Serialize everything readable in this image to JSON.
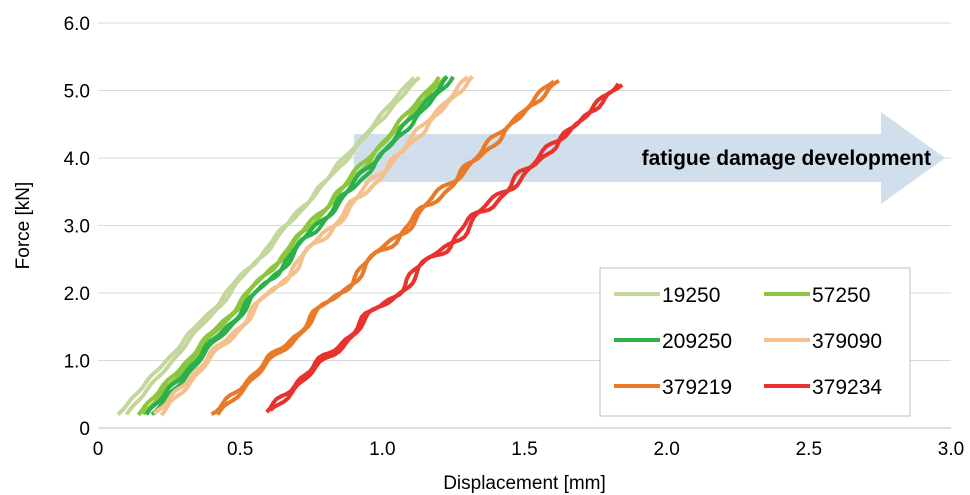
{
  "chart_data": {
    "type": "line",
    "xlabel": "Displacement [mm]",
    "ylabel": "Force [kN]",
    "xlim": [
      0,
      3.0
    ],
    "ylim": [
      0,
      6.0
    ],
    "xticks": [
      "0",
      "0.5",
      "1.0",
      "1.5",
      "2.0",
      "2.5",
      "3.0"
    ],
    "yticks": [
      "0",
      "1.0",
      "2.0",
      "3.0",
      "4.0",
      "5.0",
      "6.0"
    ],
    "grid": "horizontal",
    "legend_position": "bottom-right",
    "annotation": {
      "text": "fatigue damage development",
      "arrow_from_x": 0.9,
      "arrow_to_x": 3.0,
      "y_center": 4.0,
      "color": "#c9d8e8"
    },
    "series": [
      {
        "name": "19250",
        "color": "#c3d69b",
        "loading": [
          [
            0.07,
            0.2
          ],
          [
            1.13,
            5.2
          ]
        ],
        "unloading": [
          [
            0.1,
            0.2
          ],
          [
            1.11,
            5.2
          ]
        ]
      },
      {
        "name": "57250",
        "color": "#8cc63f",
        "loading": [
          [
            0.14,
            0.2
          ],
          [
            1.22,
            5.2
          ]
        ],
        "unloading": [
          [
            0.16,
            0.2
          ],
          [
            1.2,
            5.2
          ]
        ]
      },
      {
        "name": "209250",
        "color": "#2db04b",
        "loading": [
          [
            0.17,
            0.2
          ],
          [
            1.25,
            5.2
          ]
        ],
        "unloading": [
          [
            0.19,
            0.2
          ],
          [
            1.23,
            5.2
          ]
        ]
      },
      {
        "name": "379090",
        "color": "#f4c08e",
        "loading": [
          [
            0.2,
            0.2
          ],
          [
            1.32,
            5.2
          ]
        ],
        "unloading": [
          [
            0.22,
            0.2
          ],
          [
            1.3,
            5.2
          ]
        ]
      },
      {
        "name": "379219",
        "color": "#e87a2a",
        "loading": [
          [
            0.4,
            0.2
          ],
          [
            1.62,
            5.15
          ]
        ],
        "unloading": [
          [
            0.42,
            0.2
          ],
          [
            1.6,
            5.15
          ]
        ]
      },
      {
        "name": "379234",
        "color": "#e8322e",
        "loading": [
          [
            0.59,
            0.25
          ],
          [
            1.84,
            5.1
          ]
        ],
        "unloading": [
          [
            0.61,
            0.25
          ],
          [
            1.83,
            5.1
          ]
        ]
      }
    ]
  }
}
